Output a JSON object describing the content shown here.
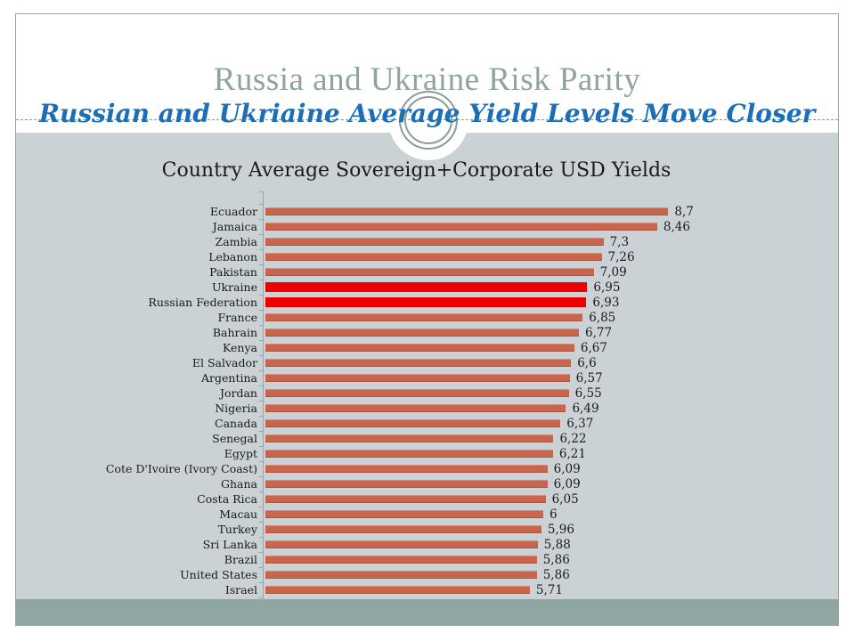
{
  "slide": {
    "title": "Russia and Ukraine Risk Parity",
    "subtitle": "Russian and Ukriaine Average Yield Levels Move Closer",
    "colors": {
      "title": "#8FA3A0",
      "subtitle": "#1C6FB6",
      "plot_band": "#CBD2D6",
      "footer_band": "#8FA6A2",
      "bar": "#C7654D",
      "highlight_bar": "#EE0000",
      "border": "#98A8A4",
      "axis": "#9AA5A1",
      "text": "#1A1A1A"
    }
  },
  "chart_data": {
    "type": "bar",
    "orientation": "horizontal",
    "title": "Country Average Sovereign+Corporate USD Yields",
    "xlabel": "",
    "ylabel": "",
    "xlim": [
      0,
      9
    ],
    "grid": false,
    "legend": false,
    "decimal_separator": ",",
    "categories": [
      "Ecuador",
      "Jamaica",
      "Zambia",
      "Lebanon",
      "Pakistan",
      "Ukraine",
      "Russian Federation",
      "France",
      "Bahrain",
      "Kenya",
      "El Salvador",
      "Argentina",
      "Jordan",
      "Nigeria",
      "Canada",
      "Senegal",
      "Egypt",
      "Cote D'Ivoire (Ivory Coast)",
      "Ghana",
      "Costa Rica",
      "Macau",
      "Turkey",
      "Sri Lanka",
      "Brazil",
      "United States",
      "Israel"
    ],
    "values": [
      8.7,
      8.46,
      7.3,
      7.26,
      7.09,
      6.95,
      6.93,
      6.85,
      6.77,
      6.67,
      6.6,
      6.57,
      6.55,
      6.49,
      6.37,
      6.22,
      6.21,
      6.09,
      6.09,
      6.05,
      6,
      5.96,
      5.88,
      5.86,
      5.86,
      5.71
    ],
    "value_labels": [
      "8,7",
      "8,46",
      "7,3",
      "7,26",
      "7,09",
      "6,95",
      "6,93",
      "6,85",
      "6,77",
      "6,67",
      "6,6",
      "6,57",
      "6,55",
      "6,49",
      "6,37",
      "6,22",
      "6,21",
      "6,09",
      "6,09",
      "6,05",
      "6",
      "5,96",
      "5,88",
      "5,86",
      "5,86",
      "5,71"
    ],
    "highlighted_categories": [
      "Ukraine",
      "Russian Federation"
    ]
  }
}
